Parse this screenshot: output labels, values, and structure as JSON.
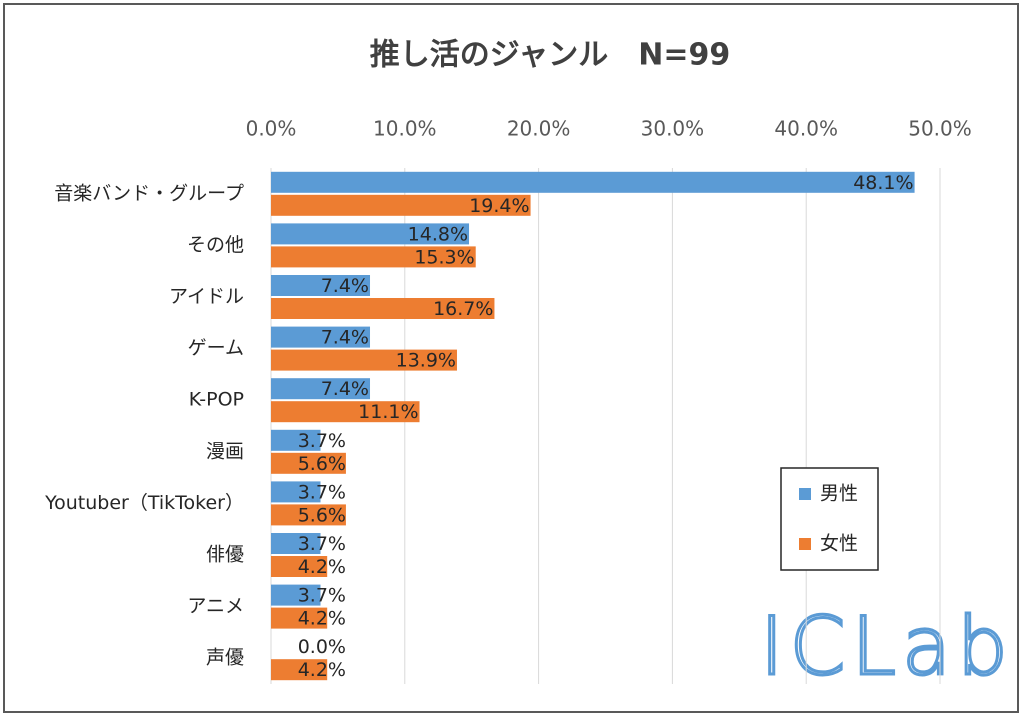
{
  "chart_data": {
    "type": "bar",
    "orientation": "horizontal",
    "title": "推し活のジャンル　N=99",
    "categories": [
      "音楽バンド・グループ",
      "その他",
      "アイドル",
      "ゲーム",
      "K-POP",
      "漫画",
      "Youtuber（TikToker）",
      "俳優",
      "アニメ",
      "声優"
    ],
    "series": [
      {
        "name": "男性",
        "color": "#5b9bd5",
        "values": [
          48.1,
          14.8,
          7.4,
          7.4,
          7.4,
          3.7,
          3.7,
          3.7,
          3.7,
          0.0
        ],
        "value_labels": [
          "48.1%",
          "14.8%",
          "7.4%",
          "7.4%",
          "7.4%",
          "3.7%",
          "3.7%",
          "3.7%",
          "3.7%",
          "0.0%"
        ]
      },
      {
        "name": "女性",
        "color": "#ed7d31",
        "values": [
          19.4,
          15.3,
          16.7,
          13.9,
          11.1,
          5.6,
          5.6,
          4.2,
          4.2,
          4.2
        ],
        "value_labels": [
          "19.4%",
          "15.3%",
          "16.7%",
          "13.9%",
          "11.1%",
          "5.6%",
          "5.6%",
          "4.2%",
          "4.2%",
          "4.2%"
        ]
      }
    ],
    "xlim": [
      0,
      50
    ],
    "xticks": [
      {
        "value": 0,
        "label": "0.0%"
      },
      {
        "value": 10,
        "label": "10.0%"
      },
      {
        "value": 20,
        "label": "20.0%"
      },
      {
        "value": 30,
        "label": "30.0%"
      },
      {
        "value": 40,
        "label": "40.0%"
      },
      {
        "value": 50,
        "label": "50.0%"
      }
    ],
    "grid": true,
    "legend": "lower-right",
    "logo": "ICLab"
  }
}
